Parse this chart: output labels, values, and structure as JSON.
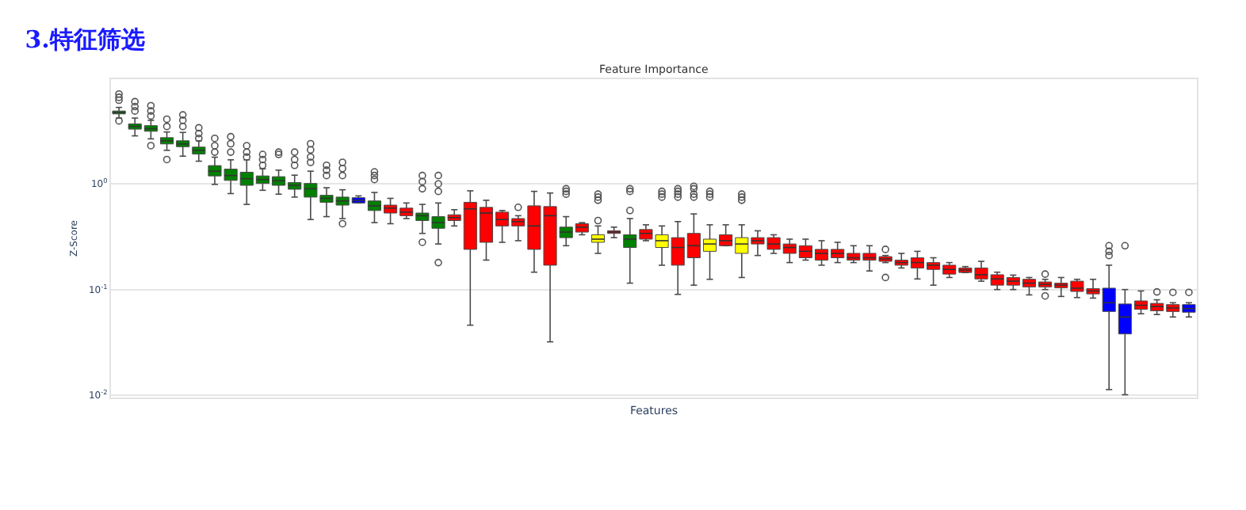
{
  "chart_data": {
    "type": "box",
    "title": "3.特征筛选",
    "subtitle": "Feature Importance",
    "xlabel": "Features",
    "ylabel": "Z-Score",
    "log": true,
    "grid": "y",
    "ylim": [
      0.0095,
      9.8
    ],
    "yticks": [
      {
        "value": 0.01,
        "label": "10$^{-2}$"
      },
      {
        "value": 0.1,
        "label": "10$^{-1}$"
      },
      {
        "value": 1,
        "label": "10$^{0}$"
      }
    ],
    "categories": [
      null,
      null,
      null,
      null,
      null,
      null,
      null,
      null,
      null,
      null,
      null,
      null,
      null,
      null,
      null,
      null,
      null,
      null,
      null,
      null,
      null,
      null,
      null,
      null,
      null,
      null,
      null,
      null,
      null,
      null,
      null,
      null,
      null,
      null,
      null,
      null,
      null,
      null,
      null,
      null,
      null,
      null,
      null,
      null,
      null,
      null,
      null,
      null,
      null,
      null,
      null,
      null,
      null,
      null,
      null,
      null,
      null,
      null,
      null,
      null,
      null,
      null,
      null,
      null,
      null,
      null,
      null,
      null
    ],
    "colors": [
      "#008000",
      "#008000",
      "#008000",
      "#008000",
      "#008000",
      "#008000",
      "#008000",
      "#008000",
      "#008000",
      "#008000",
      "#008000",
      "#008000",
      "#008000",
      "#008000",
      "#008000",
      "#0000ff",
      "#008000",
      "#ff0000",
      "#ff0000",
      "#008000",
      "#008000",
      "#ff0000",
      "#ff0000",
      "#ff0000",
      "#ff0000",
      "#ff0000",
      "#ff0000",
      "#ff0000",
      "#008000",
      "#ff0000",
      "#ffff00",
      "#ff0000",
      "#008000",
      "#ff0000",
      "#ffff00",
      "#ff0000",
      "#ff0000",
      "#ffff00",
      "#ff0000",
      "#ffff00",
      "#ff0000",
      "#ff0000",
      "#ff0000",
      "#ff0000",
      "#ff0000",
      "#ff0000",
      "#ff0000",
      "#ff0000",
      "#ff0000",
      "#ff0000",
      "#ff0000",
      "#ff0000",
      "#ff0000",
      "#ff0000",
      "#ff0000",
      "#ff0000",
      "#ff0000",
      "#ff0000",
      "#ff0000",
      "#ff0000",
      "#ff0000",
      "#ff0000",
      "#0000ff",
      "#0000ff",
      "#ff0000",
      "#ff0000",
      "#ff0000",
      "#0000ff"
    ],
    "boxes": [
      {
        "low": 4.2,
        "q1": 4.6,
        "median": 4.75,
        "q3": 4.9,
        "high": 5.3,
        "outliers": [
          7.1,
          6.6,
          6.2,
          3.95
        ]
      },
      {
        "low": 2.85,
        "q1": 3.3,
        "median": 3.5,
        "q3": 3.7,
        "high": 4.2,
        "outliers": [
          6.0,
          5.4,
          4.9
        ]
      },
      {
        "low": 2.67,
        "q1": 3.15,
        "median": 3.33,
        "q3": 3.56,
        "high": 4.0,
        "outliers": [
          5.5,
          4.9,
          4.4,
          2.3
        ]
      },
      {
        "low": 2.08,
        "q1": 2.39,
        "median": 2.56,
        "q3": 2.74,
        "high": 3.1,
        "outliers": [
          4.1,
          3.5,
          1.7
        ]
      },
      {
        "low": 1.83,
        "q1": 2.25,
        "median": 2.39,
        "q3": 2.56,
        "high": 3.07,
        "outliers": [
          4.5,
          4.0,
          3.5
        ]
      },
      {
        "low": 1.64,
        "q1": 1.92,
        "median": 2.08,
        "q3": 2.23,
        "high": 2.56,
        "outliers": [
          3.4,
          3.0,
          2.7
        ]
      },
      {
        "low": 0.99,
        "q1": 1.19,
        "median": 1.32,
        "q3": 1.49,
        "high": 1.79,
        "outliers": [
          2.7,
          2.3,
          2.0
        ]
      },
      {
        "low": 0.81,
        "q1": 1.08,
        "median": 1.2,
        "q3": 1.38,
        "high": 1.69,
        "outliers": [
          2.8,
          2.4,
          2.0
        ]
      },
      {
        "low": 0.64,
        "q1": 0.97,
        "median": 1.12,
        "q3": 1.29,
        "high": 1.69,
        "outliers": [
          2.3,
          2.0,
          1.8
        ]
      },
      {
        "low": 0.87,
        "q1": 1.01,
        "median": 1.1,
        "q3": 1.19,
        "high": 1.39,
        "outliers": [
          1.9,
          1.7,
          1.5
        ]
      },
      {
        "low": 0.8,
        "q1": 0.97,
        "median": 1.07,
        "q3": 1.17,
        "high": 1.35,
        "outliers": [
          2.0,
          1.9
        ]
      },
      {
        "low": 0.75,
        "q1": 0.89,
        "median": 0.97,
        "q3": 1.03,
        "high": 1.21,
        "outliers": [
          2.0,
          1.7,
          1.5
        ]
      },
      {
        "low": 0.46,
        "q1": 0.75,
        "median": 0.9,
        "q3": 1.01,
        "high": 1.32,
        "outliers": [
          2.4,
          2.1,
          1.8,
          1.6
        ]
      },
      {
        "low": 0.49,
        "q1": 0.67,
        "median": 0.73,
        "q3": 0.78,
        "high": 0.92,
        "outliers": [
          1.5,
          1.35,
          1.2
        ]
      },
      {
        "low": 0.47,
        "q1": 0.63,
        "median": 0.69,
        "q3": 0.75,
        "high": 0.88,
        "outliers": [
          1.6,
          1.4,
          1.2,
          0.42
        ]
      },
      {
        "low": 0.66,
        "q1": 0.66,
        "median": 0.7,
        "q3": 0.74,
        "high": 0.77
      },
      {
        "low": 0.43,
        "q1": 0.56,
        "median": 0.62,
        "q3": 0.69,
        "high": 0.83,
        "outliers": [
          1.3,
          1.2,
          1.1
        ]
      },
      {
        "low": 0.42,
        "q1": 0.53,
        "median": 0.59,
        "q3": 0.63,
        "high": 0.73
      },
      {
        "low": 0.47,
        "q1": 0.5,
        "median": 0.54,
        "q3": 0.59,
        "high": 0.66
      },
      {
        "low": 0.34,
        "q1": 0.45,
        "median": 0.5,
        "q3": 0.53,
        "high": 0.64,
        "outliers": [
          1.2,
          1.05,
          0.9,
          0.28
        ]
      },
      {
        "low": 0.27,
        "q1": 0.38,
        "median": 0.43,
        "q3": 0.49,
        "high": 0.66,
        "outliers": [
          1.2,
          1.0,
          0.85,
          0.18
        ]
      },
      {
        "low": 0.4,
        "q1": 0.45,
        "median": 0.48,
        "q3": 0.51,
        "high": 0.57
      },
      {
        "low": 0.046,
        "q1": 0.24,
        "median": 0.58,
        "q3": 0.67,
        "high": 0.86
      },
      {
        "low": 0.19,
        "q1": 0.28,
        "median": 0.53,
        "q3": 0.6,
        "high": 0.7
      },
      {
        "low": 0.28,
        "q1": 0.4,
        "median": 0.46,
        "q3": 0.54,
        "high": 0.56
      },
      {
        "low": 0.29,
        "q1": 0.4,
        "median": 0.44,
        "q3": 0.47,
        "high": 0.5,
        "outliers": [
          0.6
        ]
      },
      {
        "low": 0.146,
        "q1": 0.24,
        "median": 0.4,
        "q3": 0.62,
        "high": 0.85
      },
      {
        "low": 0.032,
        "q1": 0.17,
        "median": 0.5,
        "q3": 0.61,
        "high": 0.82
      },
      {
        "low": 0.26,
        "q1": 0.31,
        "median": 0.35,
        "q3": 0.39,
        "high": 0.49,
        "outliers": [
          0.9,
          0.85,
          0.8
        ]
      },
      {
        "low": 0.33,
        "q1": 0.35,
        "median": 0.39,
        "q3": 0.42,
        "high": 0.43
      },
      {
        "low": 0.22,
        "q1": 0.28,
        "median": 0.3,
        "q3": 0.33,
        "high": 0.4,
        "outliers": [
          0.8,
          0.75,
          0.7,
          0.45
        ]
      },
      {
        "low": 0.31,
        "q1": 0.34,
        "median": 0.35,
        "q3": 0.36,
        "high": 0.39
      },
      {
        "low": 0.115,
        "q1": 0.25,
        "median": 0.3,
        "q3": 0.33,
        "high": 0.47,
        "outliers": [
          0.9,
          0.85,
          0.56
        ]
      },
      {
        "low": 0.29,
        "q1": 0.3,
        "median": 0.34,
        "q3": 0.37,
        "high": 0.41
      },
      {
        "low": 0.17,
        "q1": 0.25,
        "median": 0.29,
        "q3": 0.33,
        "high": 0.4,
        "outliers": [
          0.85,
          0.8,
          0.75
        ]
      },
      {
        "low": 0.09,
        "q1": 0.17,
        "median": 0.25,
        "q3": 0.31,
        "high": 0.44,
        "outliers": [
          0.9,
          0.85,
          0.8,
          0.75
        ]
      },
      {
        "low": 0.11,
        "q1": 0.2,
        "median": 0.26,
        "q3": 0.34,
        "high": 0.52,
        "outliers": [
          0.95,
          0.9,
          0.8,
          0.75
        ]
      },
      {
        "low": 0.125,
        "q1": 0.23,
        "median": 0.27,
        "q3": 0.3,
        "high": 0.41,
        "outliers": [
          0.85,
          0.8,
          0.75
        ]
      },
      {
        "low": 0.26,
        "q1": 0.26,
        "median": 0.29,
        "q3": 0.33,
        "high": 0.41
      },
      {
        "low": 0.13,
        "q1": 0.22,
        "median": 0.27,
        "q3": 0.31,
        "high": 0.41,
        "outliers": [
          0.8,
          0.75,
          0.7
        ]
      },
      {
        "low": 0.21,
        "q1": 0.27,
        "median": 0.29,
        "q3": 0.31,
        "high": 0.36
      },
      {
        "low": 0.22,
        "q1": 0.24,
        "median": 0.27,
        "q3": 0.31,
        "high": 0.33
      },
      {
        "low": 0.18,
        "q1": 0.22,
        "median": 0.25,
        "q3": 0.27,
        "high": 0.3
      },
      {
        "low": 0.19,
        "q1": 0.2,
        "median": 0.23,
        "q3": 0.26,
        "high": 0.3
      },
      {
        "low": 0.17,
        "q1": 0.19,
        "median": 0.22,
        "q3": 0.24,
        "high": 0.29
      },
      {
        "low": 0.18,
        "q1": 0.2,
        "median": 0.22,
        "q3": 0.24,
        "high": 0.28
      },
      {
        "low": 0.18,
        "q1": 0.19,
        "median": 0.2,
        "q3": 0.22,
        "high": 0.26
      },
      {
        "low": 0.15,
        "q1": 0.19,
        "median": 0.2,
        "q3": 0.22,
        "high": 0.26
      },
      {
        "low": 0.18,
        "q1": 0.185,
        "median": 0.195,
        "q3": 0.205,
        "high": 0.21,
        "outliers": [
          0.24,
          0.13
        ]
      },
      {
        "low": 0.16,
        "q1": 0.17,
        "median": 0.18,
        "q3": 0.19,
        "high": 0.22
      },
      {
        "low": 0.126,
        "q1": 0.16,
        "median": 0.18,
        "q3": 0.2,
        "high": 0.23
      },
      {
        "low": 0.11,
        "q1": 0.155,
        "median": 0.17,
        "q3": 0.18,
        "high": 0.2
      },
      {
        "low": 0.13,
        "q1": 0.14,
        "median": 0.155,
        "q3": 0.17,
        "high": 0.18
      },
      {
        "low": 0.145,
        "q1": 0.145,
        "median": 0.153,
        "q3": 0.16,
        "high": 0.165
      },
      {
        "low": 0.12,
        "q1": 0.126,
        "median": 0.138,
        "q3": 0.16,
        "high": 0.185
      },
      {
        "low": 0.1,
        "q1": 0.11,
        "median": 0.126,
        "q3": 0.138,
        "high": 0.146
      },
      {
        "low": 0.1,
        "q1": 0.11,
        "median": 0.12,
        "q3": 0.13,
        "high": 0.137
      },
      {
        "low": 0.089,
        "q1": 0.106,
        "median": 0.115,
        "q3": 0.125,
        "high": 0.13
      },
      {
        "low": 0.1,
        "q1": 0.106,
        "median": 0.112,
        "q3": 0.118,
        "high": 0.125,
        "outliers": [
          0.14,
          0.087
        ]
      },
      {
        "low": 0.086,
        "q1": 0.104,
        "median": 0.11,
        "q3": 0.115,
        "high": 0.13
      },
      {
        "low": 0.084,
        "q1": 0.096,
        "median": 0.103,
        "q3": 0.12,
        "high": 0.125
      },
      {
        "low": 0.083,
        "q1": 0.091,
        "median": 0.097,
        "q3": 0.102,
        "high": 0.125
      },
      {
        "low": 0.0113,
        "q1": 0.062,
        "median": 0.075,
        "q3": 0.103,
        "high": 0.17,
        "outliers": [
          0.26,
          0.23,
          0.21
        ]
      },
      {
        "low": 0.0101,
        "q1": 0.038,
        "median": 0.055,
        "q3": 0.073,
        "high": 0.1,
        "outliers": [
          0.26
        ]
      },
      {
        "low": 0.059,
        "q1": 0.065,
        "median": 0.071,
        "q3": 0.078,
        "high": 0.097
      },
      {
        "low": 0.058,
        "q1": 0.063,
        "median": 0.069,
        "q3": 0.074,
        "high": 0.08,
        "outliers": [
          0.095
        ]
      },
      {
        "low": 0.055,
        "q1": 0.062,
        "median": 0.067,
        "q3": 0.072,
        "high": 0.075,
        "outliers": [
          0.094
        ]
      },
      {
        "low": 0.055,
        "q1": 0.061,
        "median": 0.066,
        "q3": 0.072,
        "high": 0.075,
        "outliers": [
          0.094
        ]
      }
    ]
  }
}
